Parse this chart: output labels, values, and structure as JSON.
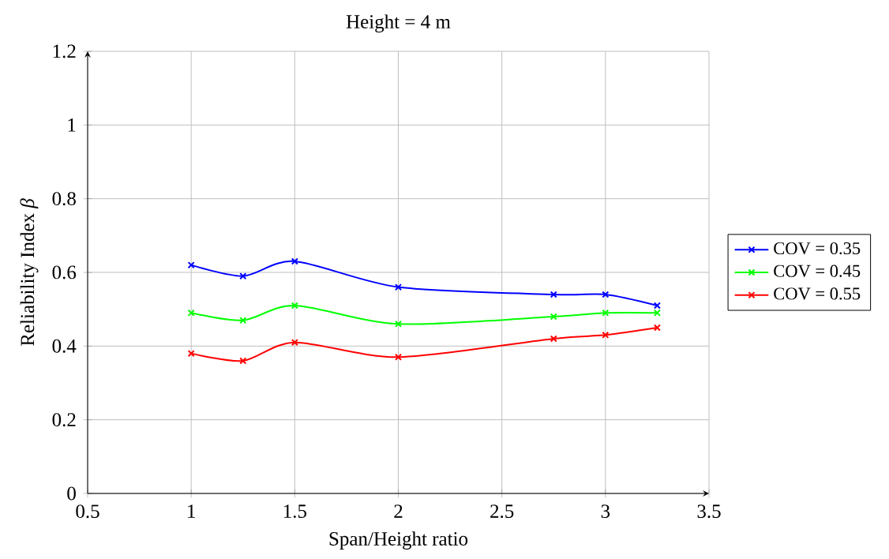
{
  "chart_data": {
    "type": "line",
    "title": "Height = 4 m",
    "xlabel": "Span/Height ratio",
    "ylabel": "Reliability Index *β*",
    "x": [
      1,
      1.25,
      1.5,
      2,
      2.75,
      3,
      3.25
    ],
    "series": [
      {
        "name": "COV = 0.35",
        "color": "#0000ff",
        "values": [
          0.62,
          0.59,
          0.63,
          0.56,
          0.54,
          0.54,
          0.51
        ]
      },
      {
        "name": "COV = 0.45",
        "color": "#00ff00",
        "values": [
          0.49,
          0.47,
          0.51,
          0.46,
          0.48,
          0.49,
          0.49
        ]
      },
      {
        "name": "COV = 0.55",
        "color": "#ff0000",
        "values": [
          0.38,
          0.36,
          0.41,
          0.37,
          0.42,
          0.43,
          0.45
        ]
      }
    ],
    "xlim": [
      0.5,
      3.5
    ],
    "ylim": [
      0,
      1.2
    ],
    "xticks": [
      0.5,
      1,
      1.5,
      2,
      2.5,
      3,
      3.5
    ],
    "yticks": [
      0,
      0.2,
      0.4,
      0.6,
      0.8,
      1,
      1.2
    ],
    "grid": true,
    "legend": "right",
    "marker": "cross",
    "line_style": "solid"
  }
}
